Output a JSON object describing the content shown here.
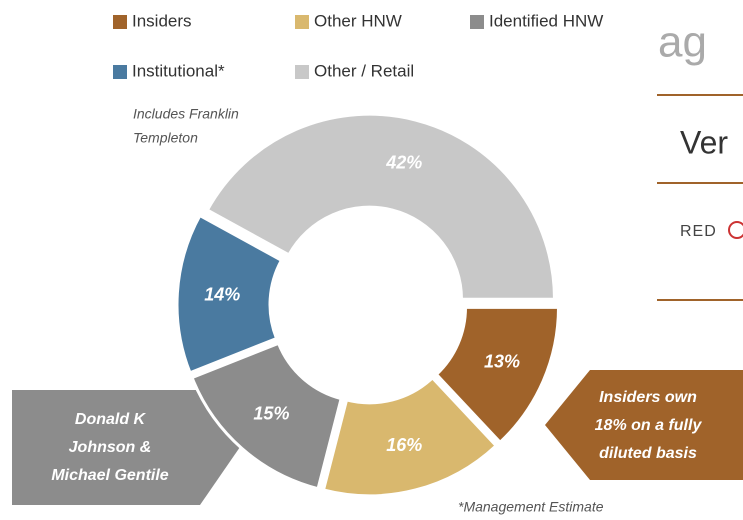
{
  "chart_data": {
    "type": "donut",
    "categories": [
      "Insiders",
      "Other HNW",
      "Identified HNW",
      "Institutional*",
      "Other / Retail"
    ],
    "values": [
      13,
      16,
      15,
      14,
      42
    ],
    "value_labels": [
      "13%",
      "16%",
      "15%",
      "14%",
      "42%"
    ],
    "colors": [
      "#a0632a",
      "#d9b86e",
      "#8c8c8c",
      "#4a7aa0",
      "#c8c8c8"
    ],
    "annotations": {
      "franklin": [
        "Includes Franklin",
        "Templeton"
      ],
      "left_callout": [
        "Donald K",
        "Johnson &",
        "Michael Gentile"
      ],
      "right_callout": [
        "Insiders  own",
        "18% on a fully",
        "diluted basis"
      ],
      "footnote": "*Management Estimate"
    }
  },
  "sidebar": {
    "logo": "ag",
    "item1": "Ver",
    "item2": "RED"
  }
}
